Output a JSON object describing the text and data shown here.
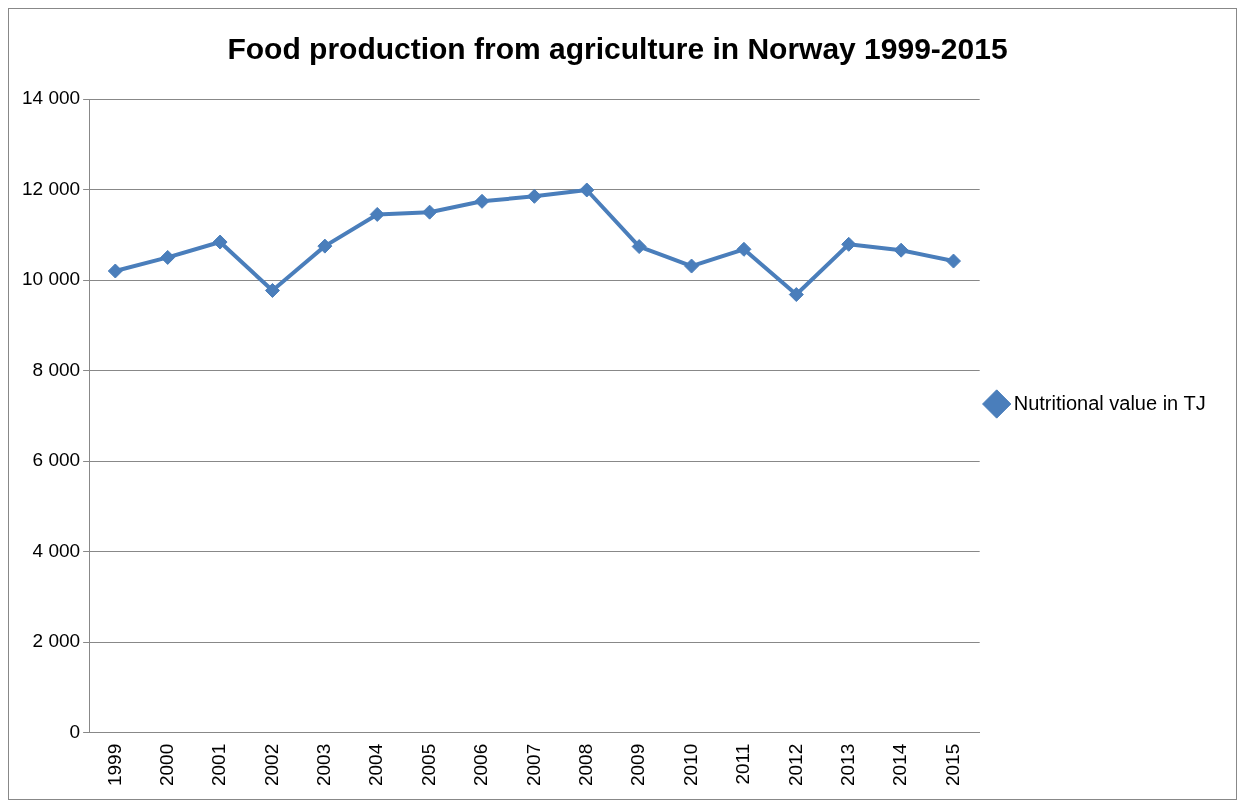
{
  "chart_data": {
    "type": "line",
    "title": "Food production from agriculture in Norway 1999-2015",
    "categories": [
      "1999",
      "2000",
      "2001",
      "2002",
      "2003",
      "2004",
      "2005",
      "2006",
      "2007",
      "2008",
      "2009",
      "2010",
      "2011",
      "2012",
      "2013",
      "2014",
      "2015"
    ],
    "series": [
      {
        "name": "Nutritional value in TJ",
        "color": "#4a7ebb",
        "values": [
          10200,
          10500,
          10840,
          9770,
          10750,
          11450,
          11500,
          11740,
          11850,
          11990,
          10740,
          10310,
          10680,
          9680,
          10790,
          10660,
          10420
        ]
      }
    ],
    "ylim": [
      0,
      14000
    ],
    "yticks": [
      {
        "value": 0,
        "label": "0"
      },
      {
        "value": 2000,
        "label": "2 000"
      },
      {
        "value": 4000,
        "label": "4 000"
      },
      {
        "value": 6000,
        "label": "6 000"
      },
      {
        "value": 8000,
        "label": "8 000"
      },
      {
        "value": 10000,
        "label": "10 000"
      },
      {
        "value": 12000,
        "label": "12 000"
      },
      {
        "value": 14000,
        "label": "14 000"
      }
    ],
    "grid": "y",
    "legend": "right",
    "marker": "diamond",
    "line_style": "solid"
  }
}
